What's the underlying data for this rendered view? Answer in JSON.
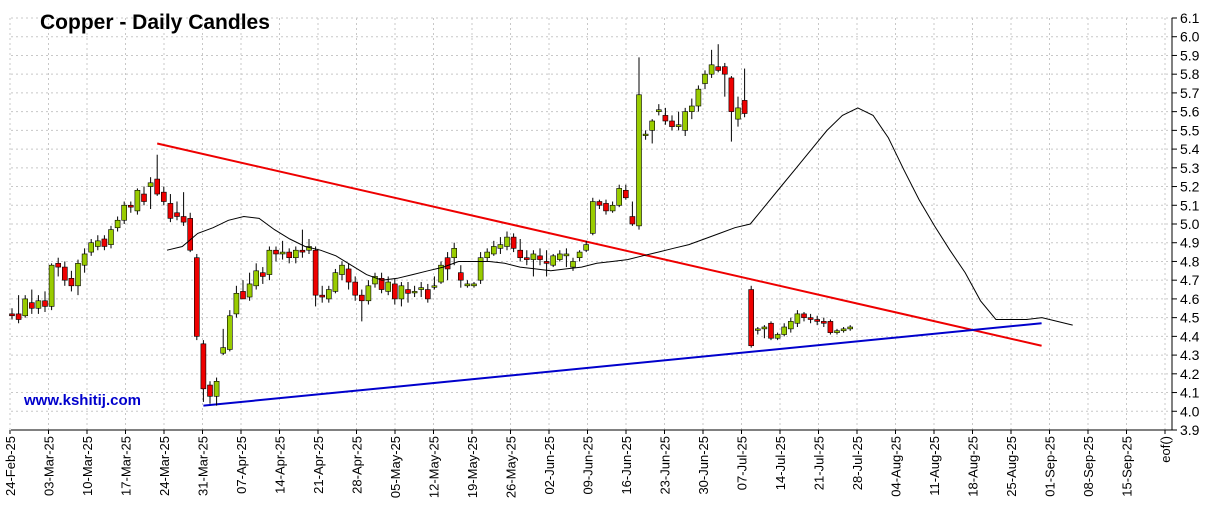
{
  "chart_data": {
    "type": "candlestick",
    "title": "Copper - Daily Candles",
    "watermark": "www.kshitij.com",
    "ylim": [
      3.9,
      6.1
    ],
    "y_ticks": [
      "3.9",
      "4.0",
      "4.1",
      "4.2",
      "4.3",
      "4.4",
      "4.5",
      "4.6",
      "4.7",
      "4.8",
      "4.9",
      "5.0",
      "5.1",
      "5.2",
      "5.3",
      "5.4",
      "5.5",
      "5.6",
      "5.7",
      "5.8",
      "5.9",
      "6.0",
      "6.1"
    ],
    "x_ticks": [
      "24-Feb-25",
      "03-Mar-25",
      "10-Mar-25",
      "17-Mar-25",
      "24-Mar-25",
      "31-Mar-25",
      "07-Apr-25",
      "14-Apr-25",
      "21-Apr-25",
      "28-Apr-25",
      "05-May-25",
      "12-May-25",
      "19-May-25",
      "26-May-25",
      "02-Jun-25",
      "09-Jun-25",
      "16-Jun-25",
      "23-Jun-25",
      "30-Jun-25",
      "07-Jul-25",
      "14-Jul-25",
      "21-Jul-25",
      "28-Jul-25",
      "04-Aug-25",
      "11-Aug-25",
      "18-Aug-25",
      "25-Aug-25",
      "01-Sep-25",
      "08-Sep-25",
      "15-Sep-25",
      "eof()"
    ],
    "colors": {
      "up": "#99cc00",
      "down": "#ee0000",
      "wick": "#000000",
      "resistance": "#ee0000",
      "support": "#0000cc",
      "ma": "#000000",
      "grid": "#c8c8c8"
    },
    "candles": [
      [
        4.52,
        4.55,
        4.49,
        4.51
      ],
      [
        4.52,
        4.62,
        4.47,
        4.49
      ],
      [
        4.51,
        4.62,
        4.5,
        4.6
      ],
      [
        4.58,
        4.65,
        4.52,
        4.55
      ],
      [
        4.55,
        4.62,
        4.52,
        4.59
      ],
      [
        4.59,
        4.64,
        4.53,
        4.56
      ],
      [
        4.56,
        4.79,
        4.54,
        4.78
      ],
      [
        4.79,
        4.82,
        4.72,
        4.77
      ],
      [
        4.77,
        4.8,
        4.67,
        4.7
      ],
      [
        4.71,
        4.75,
        4.64,
        4.67
      ],
      [
        4.67,
        4.81,
        4.62,
        4.79
      ],
      [
        4.78,
        4.87,
        4.74,
        4.84
      ],
      [
        4.85,
        4.92,
        4.83,
        4.9
      ],
      [
        4.88,
        4.94,
        4.86,
        4.91
      ],
      [
        4.92,
        4.94,
        4.86,
        4.88
      ],
      [
        4.89,
        4.99,
        4.87,
        4.97
      ],
      [
        4.98,
        5.04,
        4.96,
        5.02
      ],
      [
        5.02,
        5.12,
        5.0,
        5.1
      ],
      [
        5.1,
        5.12,
        5.06,
        5.09
      ],
      [
        5.07,
        5.19,
        5.05,
        5.18
      ],
      [
        5.16,
        5.2,
        5.1,
        5.12
      ],
      [
        5.2,
        5.25,
        5.08,
        5.22
      ],
      [
        5.24,
        5.37,
        5.15,
        5.16
      ],
      [
        5.17,
        5.2,
        5.1,
        5.12
      ],
      [
        5.11,
        5.16,
        5.01,
        5.03
      ],
      [
        5.06,
        5.12,
        5.02,
        5.04
      ],
      [
        5.04,
        5.17,
        4.99,
        5.01
      ],
      [
        5.03,
        5.06,
        4.85,
        4.86
      ],
      [
        4.82,
        4.84,
        4.38,
        4.4
      ],
      [
        4.36,
        4.38,
        4.05,
        4.12
      ],
      [
        4.14,
        4.16,
        4.04,
        4.08
      ],
      [
        4.08,
        4.18,
        4.03,
        4.16
      ],
      [
        4.31,
        4.44,
        4.3,
        4.34
      ],
      [
        4.33,
        4.54,
        4.32,
        4.51
      ],
      [
        4.52,
        4.67,
        4.5,
        4.63
      ],
      [
        4.64,
        4.7,
        4.6,
        4.6
      ],
      [
        4.61,
        4.74,
        4.59,
        4.68
      ],
      [
        4.67,
        4.79,
        4.65,
        4.75
      ],
      [
        4.74,
        4.77,
        4.68,
        4.72
      ],
      [
        4.73,
        4.88,
        4.7,
        4.86
      ],
      [
        4.86,
        4.88,
        4.8,
        4.84
      ],
      [
        4.84,
        4.91,
        4.81,
        4.85
      ],
      [
        4.85,
        4.87,
        4.79,
        4.82
      ],
      [
        4.82,
        4.88,
        4.79,
        4.86
      ],
      [
        4.86,
        4.97,
        4.82,
        4.85
      ],
      [
        4.86,
        4.92,
        4.84,
        4.88
      ],
      [
        4.86,
        4.88,
        4.56,
        4.62
      ],
      [
        4.62,
        4.67,
        4.58,
        4.61
      ],
      [
        4.6,
        4.67,
        4.58,
        4.65
      ],
      [
        4.64,
        4.76,
        4.63,
        4.74
      ],
      [
        4.73,
        4.8,
        4.7,
        4.78
      ],
      [
        4.76,
        4.79,
        4.65,
        4.69
      ],
      [
        4.69,
        4.72,
        4.59,
        4.62
      ],
      [
        4.62,
        4.65,
        4.48,
        4.59
      ],
      [
        4.59,
        4.7,
        4.57,
        4.67
      ],
      [
        4.68,
        4.74,
        4.66,
        4.72
      ],
      [
        4.71,
        4.74,
        4.63,
        4.65
      ],
      [
        4.64,
        4.72,
        4.62,
        4.69
      ],
      [
        4.68,
        4.71,
        4.57,
        4.6
      ],
      [
        4.6,
        4.69,
        4.56,
        4.67
      ],
      [
        4.65,
        4.69,
        4.58,
        4.63
      ],
      [
        4.64,
        4.67,
        4.61,
        4.64
      ],
      [
        4.65,
        4.69,
        4.61,
        4.66
      ],
      [
        4.65,
        4.68,
        4.58,
        4.6
      ],
      [
        4.67,
        4.72,
        4.65,
        4.67
      ],
      [
        4.69,
        4.8,
        4.68,
        4.78
      ],
      [
        4.82,
        4.85,
        4.7,
        4.76
      ],
      [
        4.82,
        4.9,
        4.78,
        4.87
      ],
      [
        4.74,
        4.78,
        4.66,
        4.7
      ],
      [
        4.67,
        4.7,
        4.66,
        4.68
      ],
      [
        4.67,
        4.69,
        4.66,
        4.68
      ],
      [
        4.7,
        4.85,
        4.68,
        4.82
      ],
      [
        4.82,
        4.87,
        4.8,
        4.85
      ],
      [
        4.84,
        4.91,
        4.83,
        4.88
      ],
      [
        4.87,
        4.93,
        4.84,
        4.89
      ],
      [
        4.88,
        4.96,
        4.86,
        4.93
      ],
      [
        4.93,
        4.95,
        4.85,
        4.87
      ],
      [
        4.86,
        4.92,
        4.8,
        4.82
      ],
      [
        4.82,
        4.86,
        4.78,
        4.81
      ],
      [
        4.81,
        4.86,
        4.72,
        4.84
      ],
      [
        4.83,
        4.87,
        4.78,
        4.81
      ],
      [
        4.8,
        4.86,
        4.72,
        4.79
      ],
      [
        4.78,
        4.84,
        4.77,
        4.83
      ],
      [
        4.81,
        4.86,
        4.8,
        4.84
      ],
      [
        4.83,
        4.87,
        4.77,
        4.84
      ],
      [
        4.77,
        4.82,
        4.75,
        4.8
      ],
      [
        4.82,
        4.86,
        4.8,
        4.85
      ],
      [
        4.86,
        4.91,
        4.85,
        4.89
      ],
      [
        4.95,
        5.14,
        4.94,
        5.12
      ],
      [
        5.12,
        5.13,
        5.08,
        5.1
      ],
      [
        5.11,
        5.13,
        5.05,
        5.07
      ],
      [
        5.07,
        5.12,
        5.06,
        5.1
      ],
      [
        5.1,
        5.21,
        5.09,
        5.19
      ],
      [
        5.18,
        5.21,
        5.13,
        5.14
      ],
      [
        5.04,
        5.12,
        4.99,
        5.0
      ],
      [
        4.99,
        5.89,
        4.97,
        5.69
      ],
      [
        5.48,
        5.5,
        5.45,
        5.48
      ],
      [
        5.5,
        5.56,
        5.43,
        5.55
      ],
      [
        5.6,
        5.64,
        5.58,
        5.61
      ],
      [
        5.58,
        5.62,
        5.53,
        5.55
      ],
      [
        5.55,
        5.58,
        5.5,
        5.52
      ],
      [
        5.52,
        5.6,
        5.5,
        5.53
      ],
      [
        5.5,
        5.62,
        5.47,
        5.6
      ],
      [
        5.6,
        5.67,
        5.56,
        5.63
      ],
      [
        5.63,
        5.74,
        5.6,
        5.72
      ],
      [
        5.75,
        5.82,
        5.72,
        5.8
      ],
      [
        5.8,
        5.93,
        5.78,
        5.85
      ],
      [
        5.84,
        5.96,
        5.81,
        5.82
      ],
      [
        5.84,
        5.86,
        5.68,
        5.8
      ],
      [
        5.78,
        5.79,
        5.44,
        5.6
      ],
      [
        5.56,
        5.68,
        5.52,
        5.62
      ],
      [
        5.66,
        5.83,
        5.57,
        5.59
      ],
      [
        4.65,
        4.67,
        4.34,
        4.35
      ],
      [
        4.44,
        4.45,
        4.41,
        4.44
      ],
      [
        4.44,
        4.46,
        4.39,
        4.45
      ],
      [
        4.47,
        4.48,
        4.38,
        4.39
      ],
      [
        4.39,
        4.42,
        4.38,
        4.41
      ],
      [
        4.41,
        4.47,
        4.4,
        4.45
      ],
      [
        4.44,
        4.5,
        4.42,
        4.48
      ],
      [
        4.47,
        4.54,
        4.45,
        4.52
      ],
      [
        4.52,
        4.53,
        4.48,
        4.5
      ],
      [
        4.5,
        4.52,
        4.47,
        4.49
      ],
      [
        4.49,
        4.51,
        4.46,
        4.48
      ],
      [
        4.48,
        4.5,
        4.45,
        4.47
      ],
      [
        4.48,
        4.49,
        4.41,
        4.42
      ],
      [
        4.42,
        4.44,
        4.41,
        4.43
      ],
      [
        4.43,
        4.45,
        4.42,
        4.44
      ],
      [
        4.44,
        4.46,
        4.43,
        4.45
      ]
    ],
    "moving_average": [
      [
        4.86,
        4.86
      ],
      [
        4.88,
        4.93
      ],
      [
        4.95,
        4.98
      ],
      [
        4.98,
        5.02
      ],
      [
        5.02,
        5.04
      ],
      [
        5.04,
        5.03
      ],
      [
        5.03,
        5.0
      ],
      [
        4.97,
        4.94
      ],
      [
        4.92,
        4.9
      ],
      [
        4.88,
        4.87
      ],
      [
        4.86,
        4.83
      ],
      [
        4.83,
        4.79
      ],
      [
        4.78,
        4.74
      ],
      [
        4.73,
        4.71
      ],
      [
        4.7,
        4.71
      ],
      [
        4.71,
        4.73
      ],
      [
        4.73,
        4.75
      ],
      [
        4.75,
        4.77
      ],
      [
        4.77,
        4.79
      ],
      [
        4.8,
        4.8
      ],
      [
        4.8,
        4.8
      ],
      [
        4.8,
        4.79
      ],
      [
        4.79,
        4.77
      ],
      [
        4.77,
        4.76
      ],
      [
        4.76,
        4.75
      ],
      [
        4.75,
        4.76
      ],
      [
        4.76,
        4.77
      ],
      [
        4.77,
        4.79
      ],
      [
        4.79,
        4.8
      ],
      [
        4.8,
        4.81
      ],
      [
        4.81,
        4.83
      ],
      [
        4.83,
        4.85
      ],
      [
        4.85,
        4.87
      ],
      [
        4.87,
        4.89
      ],
      [
        4.89,
        4.92
      ],
      [
        4.92,
        4.95
      ],
      [
        4.95,
        4.98
      ],
      [
        4.98,
        5.0
      ],
      [
        5.0,
        5.1
      ],
      [
        5.1,
        5.2
      ],
      [
        5.2,
        5.3
      ],
      [
        5.3,
        5.4
      ],
      [
        5.4,
        5.5
      ],
      [
        5.5,
        5.58
      ],
      [
        5.58,
        5.62
      ],
      [
        5.62,
        5.58
      ],
      [
        5.58,
        5.46
      ],
      [
        5.46,
        5.29
      ],
      [
        5.29,
        5.13
      ],
      [
        5.13,
        4.99
      ],
      [
        4.99,
        4.86
      ],
      [
        4.86,
        4.74
      ],
      [
        4.74,
        4.59
      ],
      [
        4.59,
        4.49
      ],
      [
        4.49,
        4.49
      ],
      [
        4.49,
        4.49
      ],
      [
        4.49,
        4.5
      ],
      [
        4.5,
        4.49
      ],
      [
        4.48,
        4.46
      ],
      [
        4.46,
        4.45
      ]
    ],
    "resistance_line": {
      "start": [
        22,
        5.43
      ],
      "end": [
        156,
        4.35
      ]
    },
    "support_line": {
      "start": [
        29,
        4.03
      ],
      "end": [
        156,
        4.47
      ]
    }
  }
}
